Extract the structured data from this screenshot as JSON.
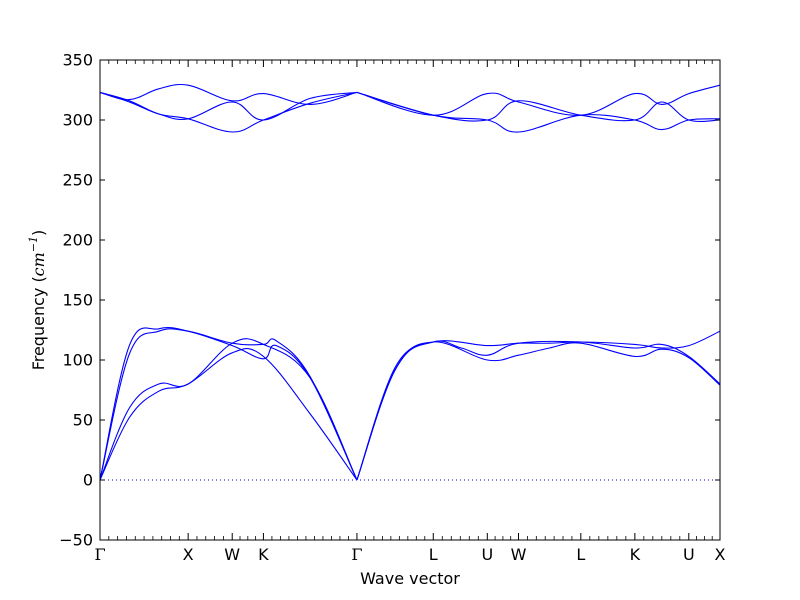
{
  "chart_data": {
    "type": "line",
    "title": "",
    "xlabel": "Wave vector",
    "ylabel": {
      "prefix": "Frequency (",
      "unit_base": "cm",
      "unit_exp": "−1",
      "suffix": ")"
    },
    "ylim": [
      -50,
      350
    ],
    "yticks": [
      -50,
      0,
      50,
      100,
      150,
      200,
      250,
      300,
      350
    ],
    "high_symmetry_points": [
      {
        "label": "Γ",
        "x": 0.0
      },
      {
        "label": "X",
        "x": 1.0
      },
      {
        "label": "W",
        "x": 1.5
      },
      {
        "label": "K",
        "x": 1.854
      },
      {
        "label": "Γ",
        "x": 2.915
      },
      {
        "label": "L",
        "x": 3.781
      },
      {
        "label": "U",
        "x": 4.394
      },
      {
        "label": "W",
        "x": 4.748
      },
      {
        "label": "L",
        "x": 5.455
      },
      {
        "label": "K",
        "x": 6.068
      },
      {
        "label": "U",
        "x": 6.68
      },
      {
        "label": "X",
        "x": 7.034
      }
    ],
    "grid": false,
    "line_color": "#0000ff",
    "zero_line_color": "#0000ff",
    "series": [
      {
        "x": [
          0,
          0.333,
          0.667,
          1,
          1.5,
          1.854,
          2.385,
          2.915
        ],
        "y": [
          0,
          52,
          74,
          80,
          106,
          103,
          55,
          0
        ]
      },
      {
        "x": [
          0,
          0.333,
          0.667,
          1,
          1.5,
          1.854,
          2.385,
          2.915
        ],
        "y": [
          0,
          60,
          80,
          80,
          114,
          113,
          85,
          0
        ]
      },
      {
        "x": [
          0,
          0.333,
          0.667,
          1,
          1.5,
          1.854,
          2.0,
          2.385,
          2.915
        ],
        "y": [
          0,
          112,
          126,
          124,
          112,
          101,
          112,
          85,
          0
        ]
      },
      {
        "x": [
          0,
          0.333,
          0.667,
          1,
          1.5,
          1.854,
          2.0,
          2.385,
          2.915
        ],
        "y": [
          0,
          105,
          124,
          124,
          114,
          113,
          116,
          86,
          0
        ]
      },
      {
        "x": [
          2.915,
          3.35,
          3.781,
          4.394,
          4.748,
          5.1,
          5.455,
          6.068,
          6.374,
          6.68,
          7.034
        ],
        "y": [
          0,
          92,
          115,
          100,
          104,
          110,
          114,
          103,
          109,
          102,
          79
        ]
      },
      {
        "x": [
          2.915,
          3.35,
          3.781,
          4.394,
          4.748,
          5.1,
          5.455,
          6.068,
          6.374,
          6.68,
          7.034
        ],
        "y": [
          0,
          92,
          115,
          112,
          114,
          114,
          115,
          113,
          110,
          112,
          124
        ]
      },
      {
        "x": [
          2.915,
          3.35,
          3.781,
          4.1,
          4.394,
          4.748,
          5.455,
          6.068,
          6.374,
          6.68,
          7.034
        ],
        "y": [
          0,
          94,
          115,
          110,
          104,
          114,
          115,
          110,
          113,
          103,
          80
        ]
      },
      {
        "x": [
          0,
          0.333,
          0.667,
          1,
          1.5,
          1.854,
          2.385,
          2.915
        ],
        "y": [
          323,
          316,
          305,
          301,
          290,
          300,
          314,
          323
        ]
      },
      {
        "x": [
          0,
          0.333,
          0.667,
          1,
          1.5,
          1.854,
          2.385,
          2.915
        ],
        "y": [
          323,
          317,
          326,
          329,
          316,
          322,
          313,
          323
        ]
      },
      {
        "x": [
          0,
          0.333,
          0.667,
          1,
          1.5,
          1.854,
          2.385,
          2.915
        ],
        "y": [
          323,
          315,
          305,
          301,
          315,
          300,
          318,
          323
        ]
      },
      {
        "x": [
          2.915,
          3.781,
          4.394,
          4.748,
          5.455,
          6.068,
          6.374,
          6.68,
          7.034
        ],
        "y": [
          323,
          304,
          300,
          290,
          304,
          300,
          292,
          300,
          301
        ]
      },
      {
        "x": [
          2.915,
          3.781,
          4.394,
          4.748,
          5.455,
          6.068,
          6.374,
          6.68,
          7.034
        ],
        "y": [
          323,
          304,
          322,
          315,
          304,
          322,
          313,
          322,
          329
        ]
      },
      {
        "x": [
          2.915,
          3.781,
          4.394,
          4.748,
          5.455,
          6.068,
          6.374,
          6.68,
          7.034
        ],
        "y": [
          323,
          304,
          300,
          316,
          304,
          300,
          315,
          300,
          300
        ]
      }
    ]
  }
}
